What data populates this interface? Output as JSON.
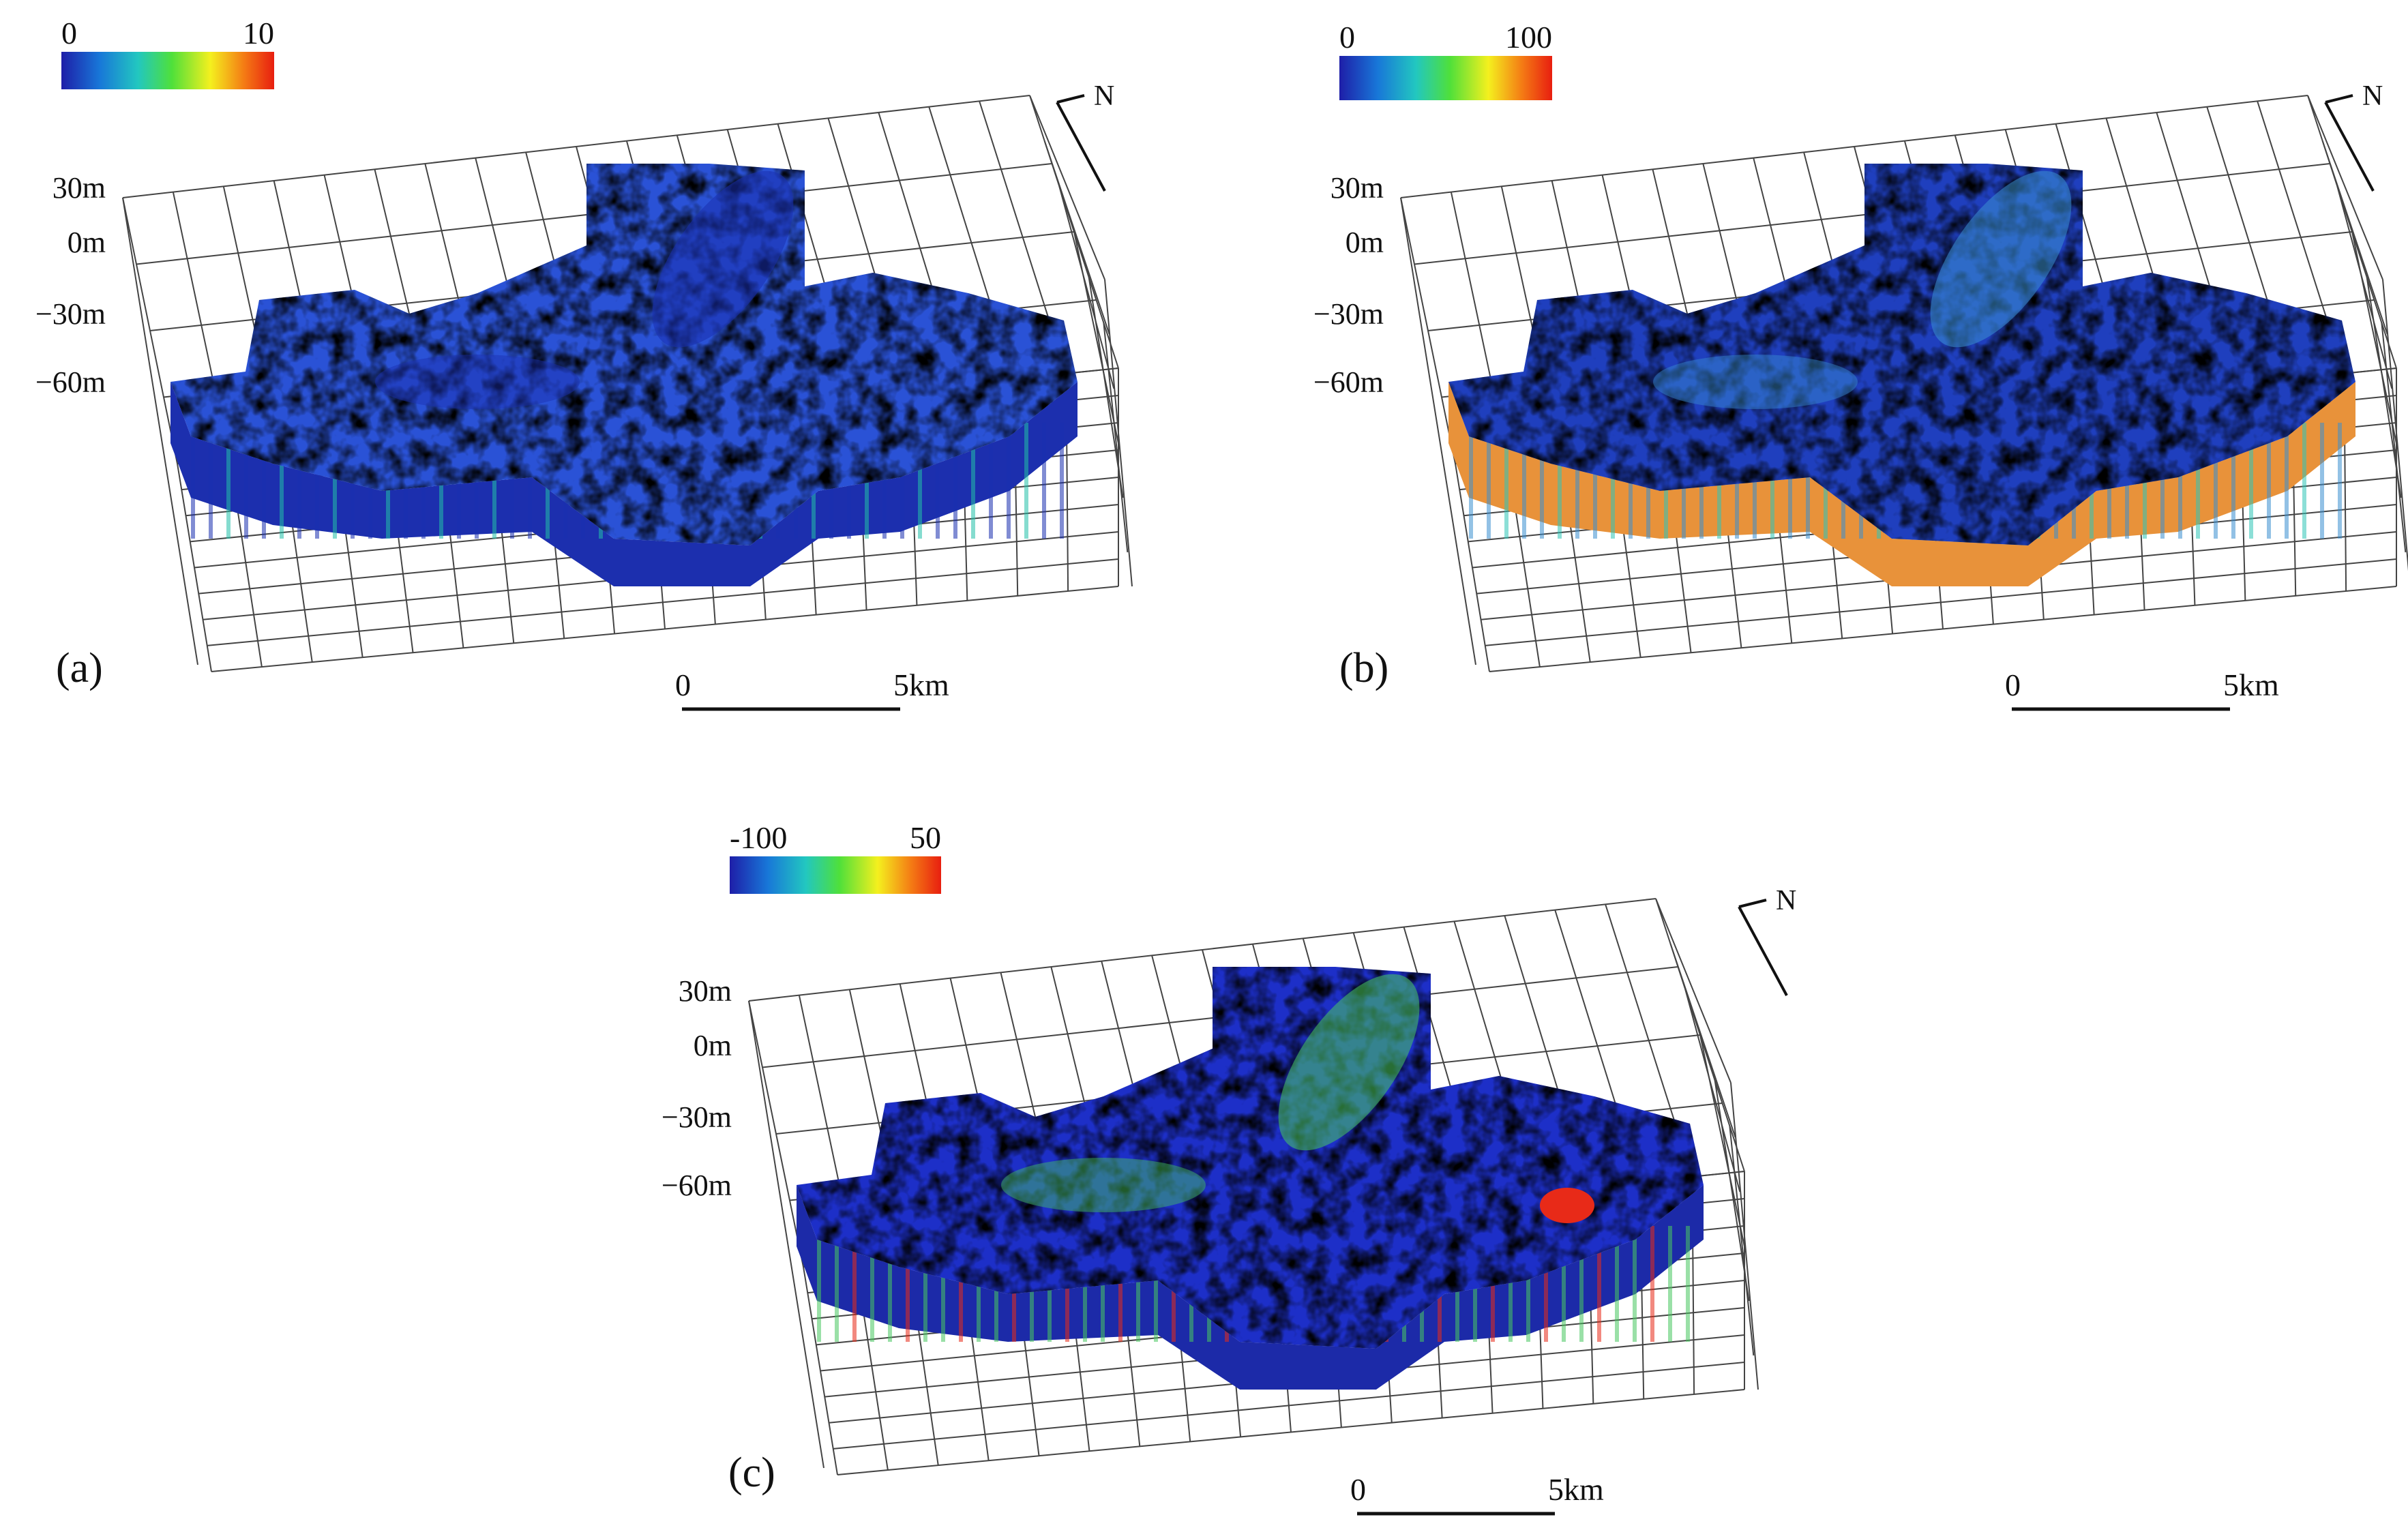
{
  "panels": [
    {
      "id": "a",
      "label": "(a)",
      "colorbar": {
        "min": "0",
        "max": "10",
        "scheme": [
          "#1e1ea8",
          "#1877d8",
          "#22c7c0",
          "#4fe03a",
          "#f4f01e",
          "#f47a14",
          "#e81e10"
        ]
      },
      "depth_labels": [
        "30m",
        "0m",
        "−30m",
        "−60m"
      ],
      "scale": {
        "start": "0",
        "end": "5km"
      },
      "north": "N",
      "palette": {
        "top": "#2a52d6",
        "mottle": "#3f8fe0",
        "dark": "#1a2fb0",
        "side": "#1c2fae",
        "accent": "#23c0a8"
      }
    },
    {
      "id": "b",
      "label": "(b)",
      "colorbar": {
        "min": "0",
        "max": "100",
        "scheme": [
          "#1e1ea8",
          "#1877d8",
          "#22c7c0",
          "#4fe03a",
          "#f4f01e",
          "#f47a14",
          "#e81e10"
        ]
      },
      "depth_labels": [
        "30m",
        "0m",
        "−30m",
        "−60m"
      ],
      "scale": {
        "start": "0",
        "end": "5km"
      },
      "north": "N",
      "palette": {
        "top": "#1f3fbe",
        "mottle": "#f2a437",
        "dark": "#3a8fd0",
        "side": "#e8923a",
        "accent": "#2fc6b8"
      }
    },
    {
      "id": "c",
      "label": "(c)",
      "colorbar": {
        "min": "-100",
        "max": "50",
        "scheme": [
          "#1e1ea8",
          "#1877d8",
          "#22c7c0",
          "#4fe03a",
          "#f4f01e",
          "#f47a14",
          "#e81e10"
        ]
      },
      "depth_labels": [
        "30m",
        "0m",
        "−30m",
        "−60m"
      ],
      "scale": {
        "start": "0",
        "end": "5km"
      },
      "north": "N",
      "palette": {
        "top": "#1d2fc8",
        "mottle": "#38b8d8",
        "dark": "#48c860",
        "side": "#1c2aa8",
        "accent": "#e82a18"
      }
    }
  ]
}
